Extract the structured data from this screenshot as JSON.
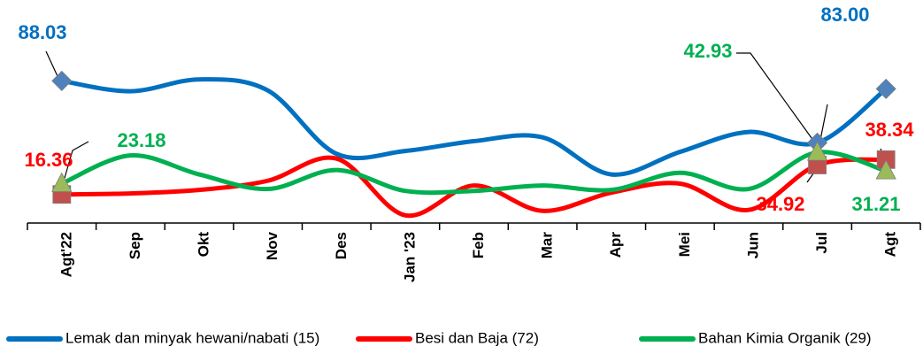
{
  "chart_data": {
    "type": "line",
    "categories": [
      "Agt'22",
      "Sep",
      "Okt",
      "Nov",
      "Des",
      "Jan '23",
      "Feb",
      "Mar",
      "Apr",
      "Mei",
      "Jun",
      "Jul",
      "Agt"
    ],
    "ylim": [
      0,
      100
    ],
    "legend": "bottom",
    "series": [
      {
        "name": "Lemak dan minyak hewani/nabati (15)",
        "color": "#0070c0",
        "marker_color": "#4f81bd",
        "values": [
          88.03,
          81.5,
          89,
          82,
          42,
          43.8,
          50,
          52.4,
          29,
          43.2,
          55.8,
          49,
          83.0
        ],
        "value_labels": [
          "88.03",
          null,
          null,
          null,
          null,
          null,
          null,
          null,
          null,
          null,
          null,
          null,
          "83.00"
        ]
      },
      {
        "name": "Besi dan Baja (72)",
        "color": "#ff0000",
        "marker_color": "#c0504d",
        "values": [
          16.36,
          17,
          19.2,
          25,
          39,
          3.2,
          22,
          6,
          17.5,
          23.2,
          6.6,
          34.92,
          38.34
        ],
        "value_labels": [
          "16.36",
          null,
          null,
          null,
          null,
          null,
          null,
          null,
          null,
          null,
          null,
          "34.92",
          "38.34"
        ]
      },
      {
        "name": "Bahan Kimia Organik (29)",
        "color": "#00b050",
        "marker_color": "#9bbb59",
        "values": [
          23.18,
          41,
          29,
          19.8,
          31.8,
          18.6,
          18.6,
          22,
          19.2,
          30,
          19.8,
          42.93,
          31.21
        ],
        "value_labels": [
          "23.18",
          null,
          null,
          null,
          null,
          null,
          null,
          null,
          null,
          null,
          null,
          "42.93",
          "31.21"
        ]
      }
    ]
  }
}
